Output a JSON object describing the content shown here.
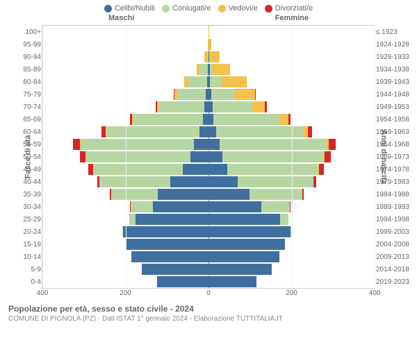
{
  "type": "population-pyramid",
  "legend": [
    {
      "label": "Celibi/Nubili",
      "color": "#3f6f9f"
    },
    {
      "label": "Coniugati/e",
      "color": "#b7d7a2"
    },
    {
      "label": "Vedovi/e",
      "color": "#f6c04c"
    },
    {
      "label": "Divorziati/e",
      "color": "#d62728"
    }
  ],
  "headers": {
    "male": "Maschi",
    "female": "Femmine"
  },
  "axis_titles": {
    "left": "Fasce di età",
    "right": "Anni di nascita"
  },
  "x": {
    "max": 400,
    "ticks": [
      400,
      200,
      0,
      200,
      400
    ]
  },
  "rows": [
    {
      "age": "100+",
      "birth": "≤ 1923",
      "m": [
        0,
        0,
        0,
        0
      ],
      "f": [
        0,
        0,
        2,
        0
      ]
    },
    {
      "age": "95-99",
      "birth": "1924-1928",
      "m": [
        0,
        0,
        2,
        0
      ],
      "f": [
        0,
        0,
        6,
        0
      ]
    },
    {
      "age": "90-94",
      "birth": "1929-1933",
      "m": [
        0,
        4,
        6,
        0
      ],
      "f": [
        2,
        2,
        22,
        0
      ]
    },
    {
      "age": "85-89",
      "birth": "1934-1938",
      "m": [
        2,
        18,
        8,
        0
      ],
      "f": [
        4,
        6,
        42,
        0
      ]
    },
    {
      "age": "80-84",
      "birth": "1939-1943",
      "m": [
        4,
        44,
        10,
        0
      ],
      "f": [
        4,
        26,
        62,
        0
      ]
    },
    {
      "age": "75-79",
      "birth": "1944-1948",
      "m": [
        6,
        70,
        6,
        2
      ],
      "f": [
        6,
        56,
        50,
        2
      ]
    },
    {
      "age": "70-74",
      "birth": "1949-1953",
      "m": [
        10,
        110,
        4,
        4
      ],
      "f": [
        10,
        96,
        30,
        4
      ]
    },
    {
      "age": "65-69",
      "birth": "1954-1958",
      "m": [
        14,
        168,
        2,
        6
      ],
      "f": [
        12,
        160,
        20,
        6
      ]
    },
    {
      "age": "60-64",
      "birth": "1959-1963",
      "m": [
        22,
        224,
        2,
        10
      ],
      "f": [
        18,
        212,
        10,
        10
      ]
    },
    {
      "age": "55-59",
      "birth": "1964-1968",
      "m": [
        36,
        272,
        2,
        16
      ],
      "f": [
        26,
        258,
        6,
        16
      ]
    },
    {
      "age": "50-54",
      "birth": "1969-1973",
      "m": [
        44,
        250,
        2,
        14
      ],
      "f": [
        34,
        242,
        4,
        14
      ]
    },
    {
      "age": "45-49",
      "birth": "1974-1978",
      "m": [
        62,
        216,
        0,
        12
      ],
      "f": [
        46,
        218,
        2,
        12
      ]
    },
    {
      "age": "40-44",
      "birth": "1979-1983",
      "m": [
        92,
        170,
        0,
        6
      ],
      "f": [
        70,
        182,
        0,
        8
      ]
    },
    {
      "age": "35-39",
      "birth": "1984-1988",
      "m": [
        122,
        112,
        0,
        4
      ],
      "f": [
        98,
        128,
        0,
        4
      ]
    },
    {
      "age": "30-34",
      "birth": "1989-1993",
      "m": [
        134,
        54,
        0,
        2
      ],
      "f": [
        128,
        68,
        0,
        2
      ]
    },
    {
      "age": "25-29",
      "birth": "1994-1998",
      "m": [
        176,
        14,
        0,
        0
      ],
      "f": [
        172,
        20,
        0,
        0
      ]
    },
    {
      "age": "20-24",
      "birth": "1999-2003",
      "m": [
        206,
        2,
        0,
        0
      ],
      "f": [
        198,
        2,
        0,
        0
      ]
    },
    {
      "age": "15-19",
      "birth": "2004-2008",
      "m": [
        200,
        0,
        0,
        0
      ],
      "f": [
        184,
        0,
        0,
        0
      ]
    },
    {
      "age": "10-14",
      "birth": "2009-2013",
      "m": [
        186,
        0,
        0,
        0
      ],
      "f": [
        170,
        0,
        0,
        0
      ]
    },
    {
      "age": "5-9",
      "birth": "2014-2018",
      "m": [
        160,
        0,
        0,
        0
      ],
      "f": [
        152,
        0,
        0,
        0
      ]
    },
    {
      "age": "0-4",
      "birth": "2019-2023",
      "m": [
        124,
        0,
        0,
        0
      ],
      "f": [
        116,
        0,
        0,
        0
      ]
    }
  ],
  "colors": {
    "background": "#ffffff",
    "grid": "#eeeeee",
    "border": "#cccccc",
    "text": "#666666"
  },
  "footer": {
    "title": "Popolazione per età, sesso e stato civile - 2024",
    "subtitle": "COMUNE DI PIGNOLA (PZ) - Dati ISTAT 1° gennaio 2024 - Elaborazione TUTTITALIA.IT"
  }
}
